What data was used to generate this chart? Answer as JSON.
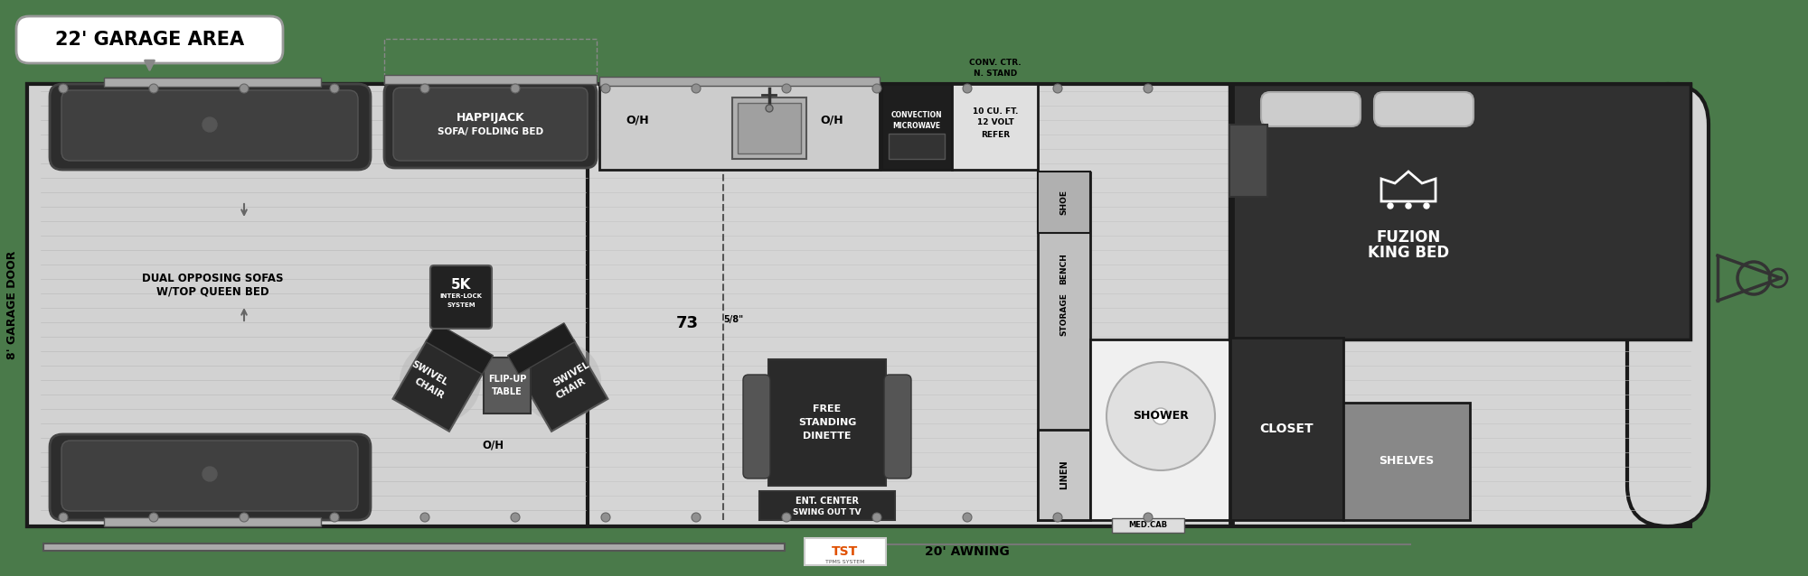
{
  "bg_color": "#4a7a4a",
  "wall_color": "#1a1a1a",
  "floor_color": "#d5d5d5",
  "dark_fill": "#333333",
  "sofa_color": "#2d2d2d",
  "white": "#ffffff",
  "black": "#000000",
  "lgray": "#aaaaaa",
  "med": "#555555",
  "garage_label": "22' GARAGE AREA",
  "garage_door_label": "8' GARAGE DOOR",
  "awning_label": "20' AWNING"
}
